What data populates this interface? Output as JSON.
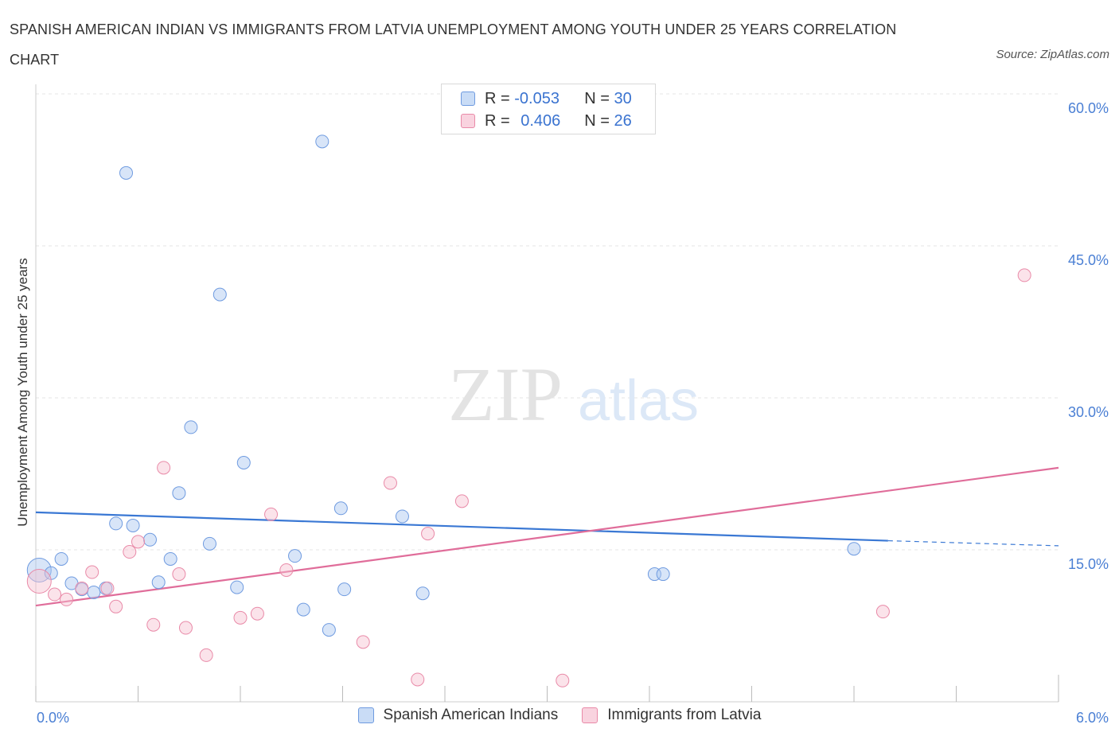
{
  "title": "SPANISH AMERICAN INDIAN VS IMMIGRANTS FROM LATVIA UNEMPLOYMENT AMONG YOUTH UNDER 25 YEARS CORRELATION CHART",
  "source": "Source: ZipAtlas.com",
  "watermark": {
    "zip": "ZIP",
    "atlas": "atlas"
  },
  "stats": [
    {
      "r_label": "R =",
      "r_value": "-0.053",
      "n_label": "N =",
      "n_value": "30",
      "color": "#a9c6f0",
      "border": "#6f9be0"
    },
    {
      "r_label": "R =",
      "r_value": "0.406",
      "n_label": "N =",
      "n_value": "26",
      "color": "#f6c0d0",
      "border": "#e98aa8"
    }
  ],
  "legend": [
    {
      "label": "Spanish American Indians",
      "color": "#a9c6f0",
      "border": "#6f9be0"
    },
    {
      "label": "Immigrants from Latvia",
      "color": "#f6c0d0",
      "border": "#e98aa8"
    }
  ],
  "chart_data": {
    "type": "scatter",
    "title": "SPANISH AMERICAN INDIAN VS IMMIGRANTS FROM LATVIA UNEMPLOYMENT AMONG YOUTH UNDER 25 YEARS CORRELATION CHART",
    "xlabel": "",
    "ylabel": "Unemployment Among Youth under 25 years",
    "xlim": [
      0,
      6
    ],
    "ylim": [
      0,
      60
    ],
    "x_tick_labels": [
      "0.0%",
      "6.0%"
    ],
    "y_ticks": [
      15,
      30,
      45,
      60
    ],
    "y_tick_labels": [
      "15.0%",
      "30.0%",
      "45.0%",
      "60.0%"
    ],
    "grid": true,
    "legend_position": "bottom-center",
    "series": [
      {
        "name": "Spanish American Indians",
        "color": "#a9c6f0",
        "line_color": "#3a78d4",
        "points": [
          [
            0.02,
            13.0
          ],
          [
            0.09,
            12.7
          ],
          [
            0.15,
            14.1
          ],
          [
            0.21,
            11.7
          ],
          [
            0.27,
            11.1
          ],
          [
            0.34,
            10.8
          ],
          [
            0.41,
            11.2
          ],
          [
            0.47,
            17.6
          ],
          [
            0.53,
            52.2
          ],
          [
            0.57,
            17.4
          ],
          [
            0.67,
            16.0
          ],
          [
            0.72,
            11.8
          ],
          [
            0.79,
            14.1
          ],
          [
            0.84,
            20.6
          ],
          [
            0.91,
            27.1
          ],
          [
            1.02,
            15.6
          ],
          [
            1.08,
            40.2
          ],
          [
            1.18,
            11.3
          ],
          [
            1.22,
            23.6
          ],
          [
            1.52,
            14.4
          ],
          [
            1.57,
            9.1
          ],
          [
            1.68,
            55.3
          ],
          [
            1.72,
            7.1
          ],
          [
            1.79,
            19.1
          ],
          [
            1.81,
            11.1
          ],
          [
            2.15,
            18.3
          ],
          [
            2.27,
            10.7
          ],
          [
            3.63,
            12.6
          ],
          [
            3.68,
            12.6
          ],
          [
            4.8,
            15.1
          ]
        ],
        "trend": {
          "x": [
            0,
            5.0
          ],
          "y": [
            18.7,
            15.9
          ]
        },
        "trend_extension": {
          "x": [
            5.0,
            6.0
          ],
          "y": [
            15.9,
            15.4
          ]
        }
      },
      {
        "name": "Immigrants from Latvia",
        "color": "#f6c0d0",
        "line_color": "#e06d9a",
        "points": [
          [
            0.02,
            11.9
          ],
          [
            0.11,
            10.6
          ],
          [
            0.18,
            10.1
          ],
          [
            0.27,
            11.2
          ],
          [
            0.33,
            12.8
          ],
          [
            0.42,
            11.2
          ],
          [
            0.47,
            9.4
          ],
          [
            0.55,
            14.8
          ],
          [
            0.6,
            15.8
          ],
          [
            0.69,
            7.6
          ],
          [
            0.75,
            23.1
          ],
          [
            0.84,
            12.6
          ],
          [
            0.88,
            7.3
          ],
          [
            1.0,
            4.6
          ],
          [
            1.2,
            8.3
          ],
          [
            1.3,
            8.7
          ],
          [
            1.38,
            18.5
          ],
          [
            1.47,
            13.0
          ],
          [
            1.92,
            5.9
          ],
          [
            2.08,
            21.6
          ],
          [
            2.24,
            2.2
          ],
          [
            2.3,
            16.6
          ],
          [
            2.5,
            19.8
          ],
          [
            3.09,
            2.1
          ],
          [
            4.97,
            8.9
          ],
          [
            5.8,
            42.1
          ]
        ],
        "trend": {
          "x": [
            0,
            6.0
          ],
          "y": [
            9.5,
            23.1
          ]
        }
      }
    ]
  }
}
